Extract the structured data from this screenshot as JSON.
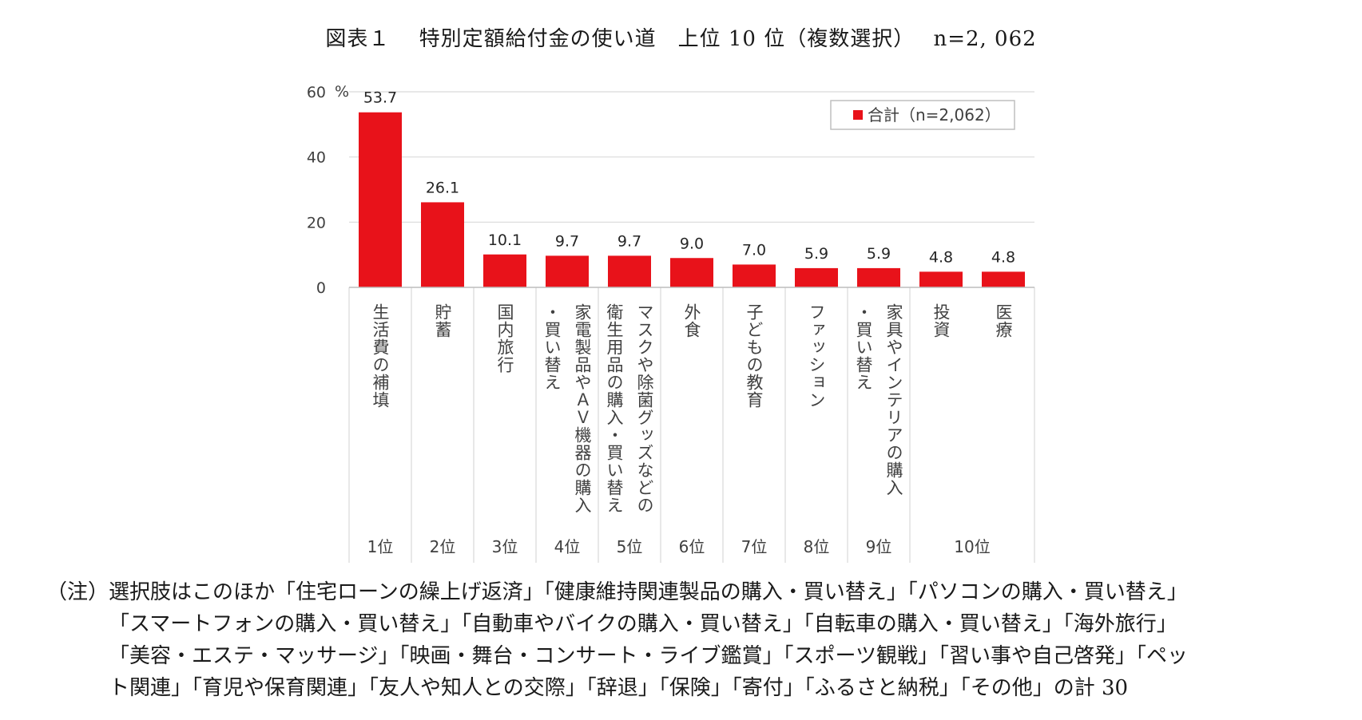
{
  "title": "図表１　 特別定額給付金の使い道　上位 10 位（複数選択）　 n=2, 062",
  "chart_data": {
    "type": "bar",
    "y_unit": "%",
    "ylim": [
      0,
      60
    ],
    "yticks": [
      0,
      20,
      40,
      60
    ],
    "grid": true,
    "legend": {
      "label": "合計（n=2,062）",
      "position": "top-right"
    },
    "bar_color": "#e8121a",
    "categories": [
      {
        "lines": [
          "生活費の補填"
        ],
        "value": 53.7,
        "label": "53.7",
        "rank": "1位"
      },
      {
        "lines": [
          "貯蓄"
        ],
        "value": 26.1,
        "label": "26.1",
        "rank": "2位"
      },
      {
        "lines": [
          "国内旅行"
        ],
        "value": 10.1,
        "label": "10.1",
        "rank": "3位"
      },
      {
        "lines": [
          "家電製品やＡＶ機器の購入",
          "・買い替え"
        ],
        "value": 9.7,
        "label": "9.7",
        "rank": "4位"
      },
      {
        "lines": [
          "マスクや除菌グッズなどの",
          "衛生用品の購入・買い替え"
        ],
        "value": 9.7,
        "label": "9.7",
        "rank": "5位"
      },
      {
        "lines": [
          "外食"
        ],
        "value": 9.0,
        "label": "9.0",
        "rank": "6位"
      },
      {
        "lines": [
          "子どもの教育"
        ],
        "value": 7.0,
        "label": "7.0",
        "rank": "7位"
      },
      {
        "lines": [
          "ファッション"
        ],
        "value": 5.9,
        "label": "5.9",
        "rank": "8位"
      },
      {
        "lines": [
          "家具やインテリアの購入",
          "・買い替え"
        ],
        "value": 5.9,
        "label": "5.9",
        "rank": "9位"
      },
      {
        "lines": [
          "投資"
        ],
        "value": 4.8,
        "label": "4.8",
        "rank": ""
      },
      {
        "lines": [
          "医療"
        ],
        "value": 4.8,
        "label": "4.8",
        "rank": ""
      }
    ],
    "shared_rank": "10位"
  },
  "note": {
    "lines": [
      "（注）選択肢はこのほか「住宅ローンの繰上げ返済」「健康維持関連製品の購入・買い替え」「パソコンの購入・買い替え」",
      "「スマートフォンの購入・買い替え」「自動車やバイクの購入・買い替え」「自転車の購入・買い替え」「海外旅行」",
      "「美容・エステ・マッサージ」「映画・舞台・コンサート・ライブ鑑賞」「スポーツ観戦」「習い事や自己啓発」「ペッ",
      "ト関連」「育児や保育関連」「友人や知人との交際」「辞退」「保険」「寄付」「ふるさと納税」「その他」の計 30"
    ]
  }
}
